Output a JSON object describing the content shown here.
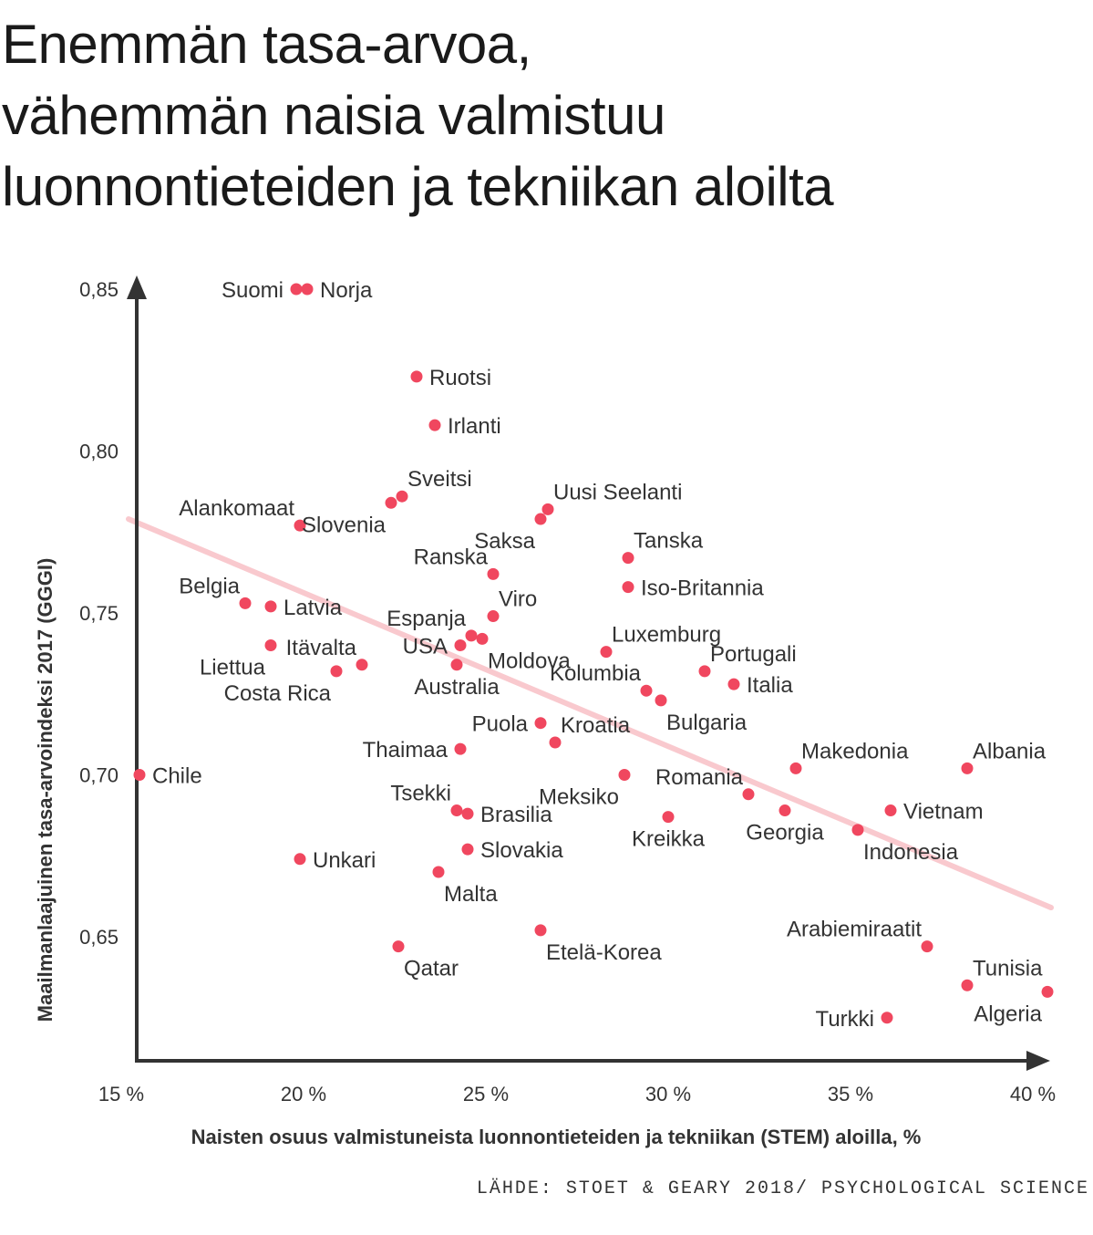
{
  "title_lines": [
    "Enemmän tasa-arvoa,",
    "vähemmän naisia valmistuu",
    "luonnontieteiden ja tekniikan aloilta"
  ],
  "source": "LÄHDE: STOET & GEARY 2018/ PSYCHOLOGICAL SCIENCE",
  "colors": {
    "point": "#f0475f",
    "trend": "#f9c9ce",
    "axis": "#333333",
    "text": "#333333"
  },
  "chart_data": {
    "type": "scatter",
    "title": "Enemmän tasa-arvoa, vähemmän naisia valmistuu luonnontieteiden ja tekniikan aloilta",
    "xlabel": "Naisten osuus valmistuneista luonnontieteiden ja tekniikan (STEM) aloilla, %",
    "ylabel": "Maailmanlaajuinen tasa-arvoindeksi 2017 (GGGI)",
    "xlim": [
      15,
      40.6
    ],
    "ylim": [
      0.61,
      0.855
    ],
    "x_ticks": [
      {
        "value": 15,
        "label": "15 %"
      },
      {
        "value": 20,
        "label": "20 %"
      },
      {
        "value": 25,
        "label": "25 %"
      },
      {
        "value": 30,
        "label": "30 %"
      },
      {
        "value": 35,
        "label": "35 %"
      },
      {
        "value": 40,
        "label": "40 %"
      }
    ],
    "y_ticks": [
      {
        "value": 0.85,
        "label": "0,85"
      },
      {
        "value": 0.8,
        "label": "0,80"
      },
      {
        "value": 0.75,
        "label": "0,75"
      },
      {
        "value": 0.7,
        "label": "0,70"
      },
      {
        "value": 0.65,
        "label": "0,65"
      }
    ],
    "grid": false,
    "trendline": {
      "x": [
        15.2,
        40.5
      ],
      "y": [
        0.779,
        0.659
      ]
    },
    "points": [
      {
        "label": "Suomi",
        "x": 19.8,
        "y": 0.85,
        "anchor": "left"
      },
      {
        "label": "Norja",
        "x": 20.1,
        "y": 0.85,
        "anchor": "right"
      },
      {
        "label": "Ruotsi",
        "x": 23.1,
        "y": 0.823,
        "anchor": "right"
      },
      {
        "label": "Irlanti",
        "x": 23.6,
        "y": 0.808,
        "anchor": "right"
      },
      {
        "label": "Sveitsi",
        "x": 22.7,
        "y": 0.786,
        "anchor": "above-right"
      },
      {
        "label": "Slovenia",
        "x": 22.4,
        "y": 0.784,
        "anchor": "below-left"
      },
      {
        "label": "Uusi Seelanti",
        "x": 26.7,
        "y": 0.782,
        "anchor": "above-right"
      },
      {
        "label": "Saksa",
        "x": 26.5,
        "y": 0.779,
        "anchor": "below-left"
      },
      {
        "label": "Alankomaat",
        "x": 19.9,
        "y": 0.777,
        "anchor": "above-left"
      },
      {
        "label": "Tanska",
        "x": 28.9,
        "y": 0.767,
        "anchor": "above-right"
      },
      {
        "label": "Ranska",
        "x": 25.2,
        "y": 0.762,
        "anchor": "above-left"
      },
      {
        "label": "Iso-Britannia",
        "x": 28.9,
        "y": 0.758,
        "anchor": "right"
      },
      {
        "label": "Belgia",
        "x": 18.4,
        "y": 0.753,
        "anchor": "above-left"
      },
      {
        "label": "Latvia",
        "x": 19.1,
        "y": 0.752,
        "anchor": "right"
      },
      {
        "label": "Viro",
        "x": 25.2,
        "y": 0.749,
        "anchor": "above-right"
      },
      {
        "label": "Espanja",
        "x": 24.6,
        "y": 0.743,
        "anchor": "above-left"
      },
      {
        "label": "Moldova",
        "x": 24.9,
        "y": 0.742,
        "anchor": "below-right"
      },
      {
        "label": "USA",
        "x": 24.3,
        "y": 0.74,
        "anchor": "left"
      },
      {
        "label": "Liettua",
        "x": 19.1,
        "y": 0.74,
        "anchor": "below-left"
      },
      {
        "label": "Luxemburg",
        "x": 28.3,
        "y": 0.738,
        "anchor": "above-right"
      },
      {
        "label": "Itävalta",
        "x": 21.6,
        "y": 0.734,
        "anchor": "above-left"
      },
      {
        "label": "Australia",
        "x": 24.2,
        "y": 0.734,
        "anchor": "below"
      },
      {
        "label": "Costa Rica",
        "x": 20.9,
        "y": 0.732,
        "anchor": "below-left"
      },
      {
        "label": "Portugali",
        "x": 31.0,
        "y": 0.732,
        "anchor": "above-right"
      },
      {
        "label": "Italia",
        "x": 31.8,
        "y": 0.728,
        "anchor": "right"
      },
      {
        "label": "Kolumbia",
        "x": 29.4,
        "y": 0.726,
        "anchor": "above-left"
      },
      {
        "label": "Bulgaria",
        "x": 29.8,
        "y": 0.723,
        "anchor": "below-right"
      },
      {
        "label": "Puola",
        "x": 26.5,
        "y": 0.716,
        "anchor": "left"
      },
      {
        "label": "Kroatia",
        "x": 26.9,
        "y": 0.71,
        "anchor": "above-right"
      },
      {
        "label": "Thaimaa",
        "x": 24.3,
        "y": 0.708,
        "anchor": "left"
      },
      {
        "label": "Makedonia",
        "x": 33.5,
        "y": 0.702,
        "anchor": "above-right"
      },
      {
        "label": "Albania",
        "x": 38.2,
        "y": 0.702,
        "anchor": "above-right"
      },
      {
        "label": "Chile",
        "x": 15.5,
        "y": 0.7,
        "anchor": "right"
      },
      {
        "label": "Meksiko",
        "x": 28.8,
        "y": 0.7,
        "anchor": "below-left"
      },
      {
        "label": "Romania",
        "x": 32.2,
        "y": 0.694,
        "anchor": "above-left"
      },
      {
        "label": "Vietnam",
        "x": 36.1,
        "y": 0.689,
        "anchor": "right"
      },
      {
        "label": "Tsekki",
        "x": 24.2,
        "y": 0.689,
        "anchor": "above-left"
      },
      {
        "label": "Brasilia",
        "x": 24.5,
        "y": 0.688,
        "anchor": "right"
      },
      {
        "label": "Georgia",
        "x": 33.2,
        "y": 0.689,
        "anchor": "below"
      },
      {
        "label": "Kreikka",
        "x": 30.0,
        "y": 0.687,
        "anchor": "below"
      },
      {
        "label": "Indonesia",
        "x": 35.2,
        "y": 0.683,
        "anchor": "below-right"
      },
      {
        "label": "Slovakia",
        "x": 24.5,
        "y": 0.677,
        "anchor": "right"
      },
      {
        "label": "Unkari",
        "x": 19.9,
        "y": 0.674,
        "anchor": "right"
      },
      {
        "label": "Malta",
        "x": 23.7,
        "y": 0.67,
        "anchor": "below-right"
      },
      {
        "label": "Etelä-Korea",
        "x": 26.5,
        "y": 0.652,
        "anchor": "below-right"
      },
      {
        "label": "Qatar",
        "x": 22.6,
        "y": 0.647,
        "anchor": "below-right"
      },
      {
        "label": "Arabiemiraatit",
        "x": 37.1,
        "y": 0.647,
        "anchor": "above-left"
      },
      {
        "label": "Tunisia",
        "x": 38.2,
        "y": 0.635,
        "anchor": "above-right"
      },
      {
        "label": "Algeria",
        "x": 40.4,
        "y": 0.633,
        "anchor": "below-left"
      },
      {
        "label": "Turkki",
        "x": 36.0,
        "y": 0.625,
        "anchor": "left"
      }
    ]
  }
}
